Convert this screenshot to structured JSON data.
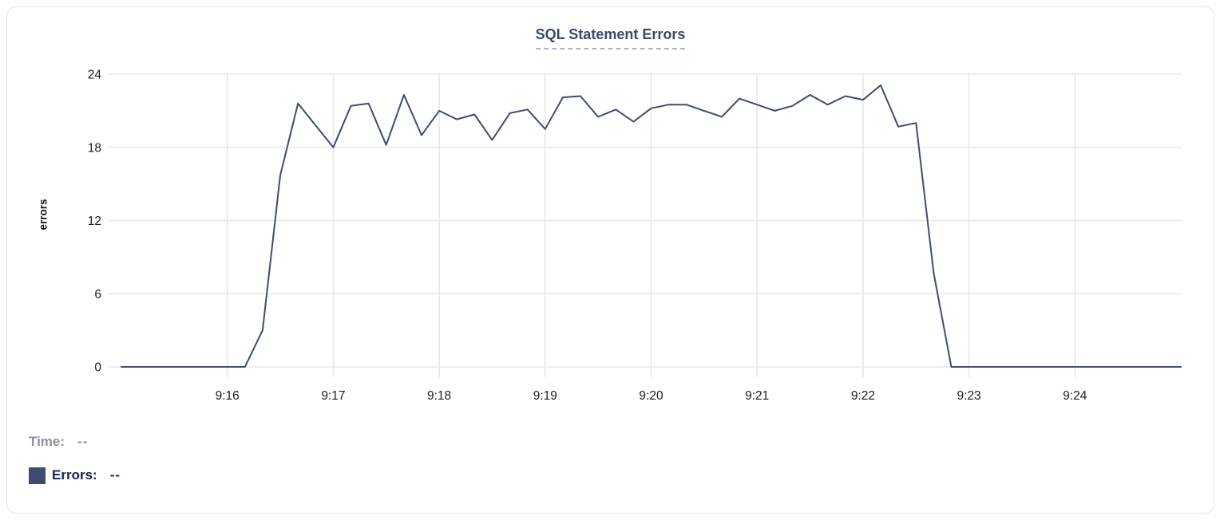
{
  "card": {
    "background": "#ffffff",
    "border_color": "#e7e8ea"
  },
  "chart_data": {
    "type": "line",
    "title": "SQL Statement Errors",
    "xlabel": "",
    "ylabel": "errors",
    "ylim": [
      0,
      24
    ],
    "y_ticks": [
      0,
      6,
      12,
      18,
      24
    ],
    "x_tick_labels": [
      "9:16",
      "9:17",
      "9:18",
      "9:19",
      "9:20",
      "9:21",
      "9:22",
      "9:23",
      "9:24"
    ],
    "x_range": {
      "start": "9:15:00",
      "end": "9:25:00",
      "step_seconds": 10
    },
    "grid": true,
    "legend_position": "bottom-left",
    "series": [
      {
        "name": "Errors",
        "color": "#3e4d6f",
        "values": [
          0,
          0,
          0,
          0,
          0,
          0,
          0,
          0,
          3,
          15.7,
          21.6,
          19.8,
          18,
          21.4,
          21.6,
          18.2,
          22.3,
          19,
          21,
          20.3,
          20.7,
          18.6,
          20.8,
          21.1,
          19.5,
          22.1,
          22.2,
          20.5,
          21.1,
          20.1,
          21.2,
          21.5,
          21.5,
          21,
          20.5,
          22,
          21.5,
          21,
          21.4,
          22.3,
          21.5,
          22.2,
          21.9,
          23.1,
          19.7,
          20,
          7.7,
          0,
          0,
          0,
          0,
          0,
          0,
          0,
          0,
          0,
          0,
          0,
          0,
          0,
          0
        ]
      }
    ]
  },
  "tooltip_readout": {
    "time_label": "Time:",
    "time_value": "--",
    "errors_label": "Errors:",
    "errors_value": "--",
    "swatch_color": "#3e4d6f"
  },
  "style": {
    "title_color": "#3b4a68",
    "title_underline_color": "#a9b4c9",
    "grid_color": "#e8e8e8",
    "tick_label_color": "#1c1c1c",
    "axis_label_color": "#111111",
    "time_label_color": "#8b919c",
    "errors_label_color": "#17234d"
  }
}
